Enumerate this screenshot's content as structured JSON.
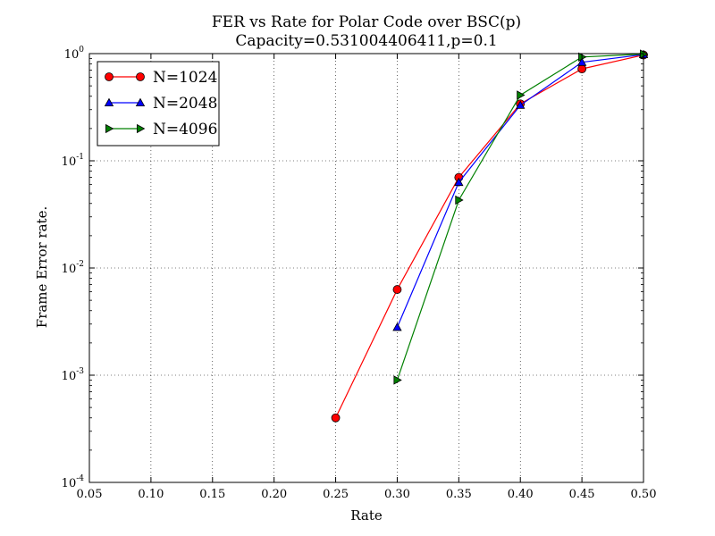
{
  "chart_data": {
    "type": "line",
    "title": "FER vs Rate for Polar Code over BSC(p)",
    "subtitle": "Capacity=0.531004406411,p=0.1",
    "xlabel": "Rate",
    "ylabel": "Frame Error rate.",
    "xlim": [
      0.05,
      0.5
    ],
    "ylim": [
      0.0001,
      1
    ],
    "yscale": "log",
    "grid": true,
    "legend_position": "top-left",
    "x_ticks": [
      "0.05",
      "0.10",
      "0.15",
      "0.20",
      "0.25",
      "0.30",
      "0.35",
      "0.40",
      "0.45",
      "0.50"
    ],
    "y_ticks": [
      {
        "base": "10",
        "exp": "0",
        "value": 1
      },
      {
        "base": "10",
        "exp": "-1",
        "value": 0.1
      },
      {
        "base": "10",
        "exp": "-2",
        "value": 0.01
      },
      {
        "base": "10",
        "exp": "-3",
        "value": 0.001
      },
      {
        "base": "10",
        "exp": "-4",
        "value": 0.0001
      }
    ],
    "series": [
      {
        "name": "N=1024",
        "color": "#ff0000",
        "marker": "circle",
        "x": [
          0.25,
          0.3,
          0.35,
          0.4,
          0.45,
          0.5
        ],
        "y": [
          0.0004,
          0.0063,
          0.07,
          0.34,
          0.72,
          0.97
        ]
      },
      {
        "name": "N=2048",
        "color": "#0000ff",
        "marker": "triangle-up",
        "x": [
          0.3,
          0.35,
          0.4,
          0.45,
          0.5
        ],
        "y": [
          0.0028,
          0.063,
          0.33,
          0.83,
          0.98
        ]
      },
      {
        "name": "N=4096",
        "color": "#008000",
        "marker": "triangle-right",
        "x": [
          0.3,
          0.35,
          0.4,
          0.45,
          0.5
        ],
        "y": [
          0.0009,
          0.043,
          0.41,
          0.93,
          0.99
        ]
      }
    ]
  }
}
